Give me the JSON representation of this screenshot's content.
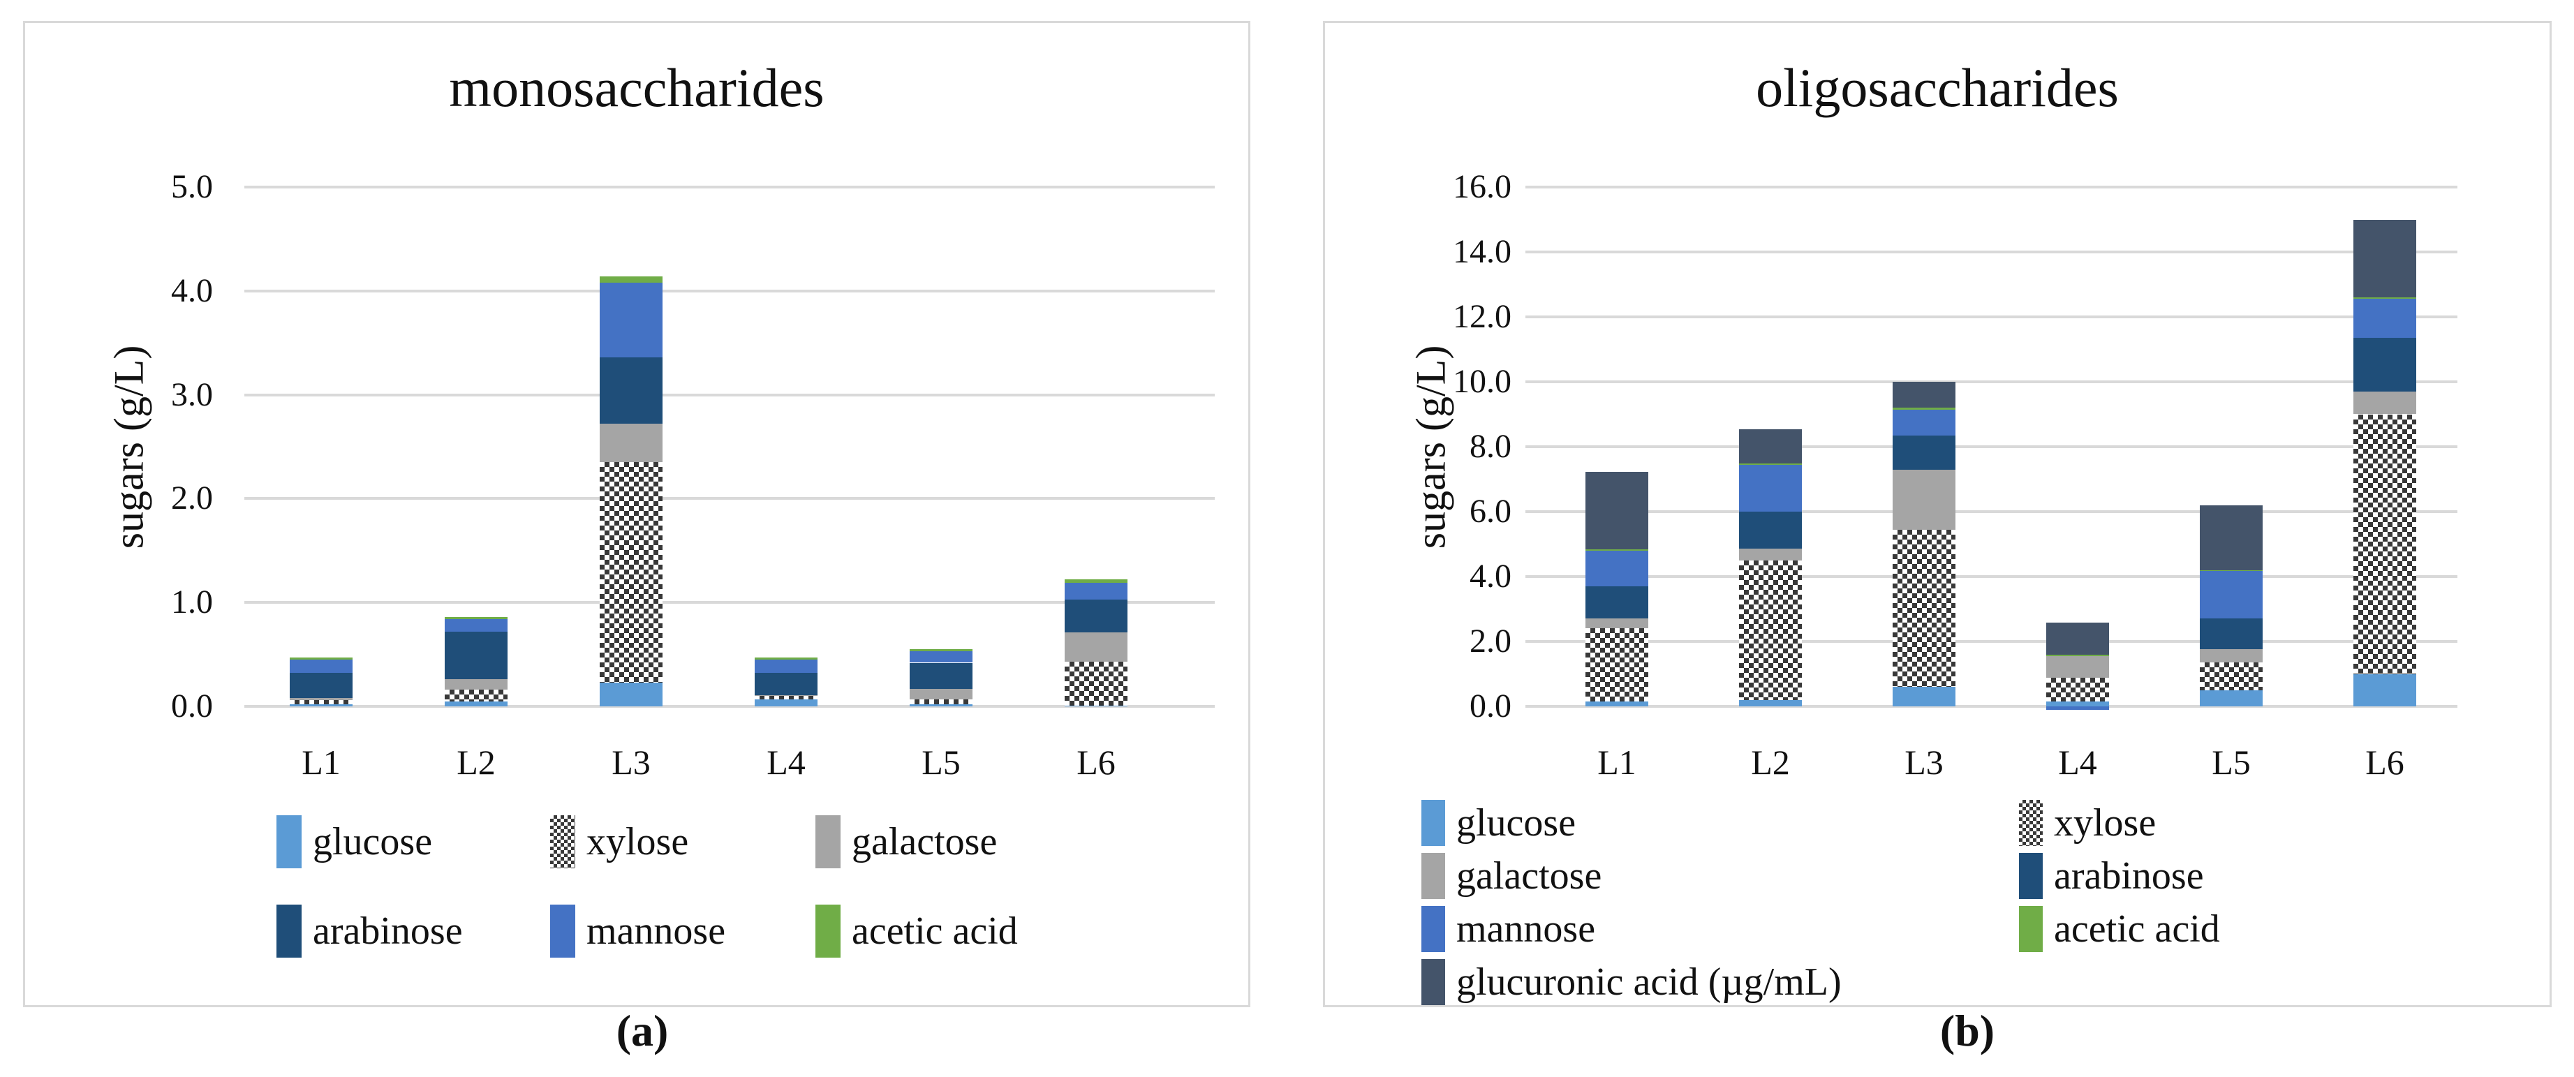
{
  "captions": [
    "(a)",
    "(b)"
  ],
  "colors": {
    "glucose": "#5B9BD5",
    "xylose": "#383838",
    "galactose": "#A5A5A5",
    "arabinose": "#1F4E79",
    "mannose": "#4472C4",
    "acetic acid": "#70AD47",
    "glucuronic acid (µg/mL)": "#44546A",
    "gridline": "#D9D9D9",
    "panel_border": "#D9D9D9",
    "text": "#111111"
  },
  "chart_data": [
    {
      "type": "bar",
      "stacked": true,
      "title": "monosaccharides",
      "ylabel": "sugars (g/L)",
      "xlabel": "",
      "categories": [
        "L1",
        "L2",
        "L3",
        "L4",
        "L5",
        "L6"
      ],
      "ylim": [
        0,
        5
      ],
      "ytick_step": 1.0,
      "yticks": [
        "0.0",
        "1.0",
        "2.0",
        "3.0",
        "4.0",
        "5.0"
      ],
      "grid": true,
      "legend_position": "bottom",
      "legend_columns": 3,
      "series": [
        {
          "name": "glucose",
          "pattern": "solid",
          "values": [
            0.02,
            0.05,
            0.23,
            0.07,
            0.02,
            0.01
          ]
        },
        {
          "name": "xylose",
          "pattern": "checker",
          "values": [
            0.04,
            0.11,
            2.12,
            0.03,
            0.05,
            0.42
          ]
        },
        {
          "name": "galactose",
          "pattern": "solid",
          "values": [
            0.02,
            0.1,
            0.37,
            0.01,
            0.1,
            0.28
          ]
        },
        {
          "name": "arabinose",
          "pattern": "solid",
          "values": [
            0.24,
            0.46,
            0.64,
            0.21,
            0.25,
            0.32
          ]
        },
        {
          "name": "mannose",
          "pattern": "solid",
          "values": [
            0.13,
            0.12,
            0.72,
            0.13,
            0.11,
            0.16
          ]
        },
        {
          "name": "acetic acid",
          "pattern": "solid",
          "values": [
            0.02,
            0.02,
            0.06,
            0.02,
            0.02,
            0.03
          ]
        }
      ]
    },
    {
      "type": "bar",
      "stacked": true,
      "title": "oligosaccharides",
      "ylabel": "sugars (g/L)",
      "xlabel": "",
      "categories": [
        "L1",
        "L2",
        "L3",
        "L4",
        "L5",
        "L6"
      ],
      "ylim": [
        0,
        16
      ],
      "ytick_step": 2.0,
      "yticks": [
        "0.0",
        "2.0",
        "4.0",
        "6.0",
        "8.0",
        "10.0",
        "12.0",
        "14.0",
        "16.0"
      ],
      "grid": true,
      "legend_position": "bottom",
      "legend_columns": 2,
      "series": [
        {
          "name": "glucose",
          "pattern": "solid",
          "values": [
            0.15,
            0.2,
            0.6,
            0.16,
            0.5,
            1.0
          ]
        },
        {
          "name": "xylose",
          "pattern": "checker",
          "values": [
            2.25,
            4.3,
            4.85,
            0.72,
            0.85,
            8.0
          ]
        },
        {
          "name": "galactose",
          "pattern": "solid",
          "values": [
            0.3,
            0.35,
            1.85,
            0.67,
            0.42,
            0.7
          ]
        },
        {
          "name": "arabinose",
          "pattern": "solid",
          "values": [
            1.0,
            1.15,
            1.05,
            0.0,
            0.95,
            1.65
          ]
        },
        {
          "name": "mannose",
          "pattern": "solid",
          "values": [
            1.1,
            1.45,
            0.8,
            -0.1,
            1.45,
            1.2
          ]
        },
        {
          "name": "acetic acid",
          "pattern": "solid",
          "values": [
            0.03,
            0.03,
            0.05,
            0.04,
            0.02,
            0.05
          ]
        },
        {
          "name": "glucuronic acid (µg/mL)",
          "pattern": "solid",
          "values": [
            2.4,
            1.05,
            0.8,
            1.0,
            2.0,
            2.4
          ]
        }
      ]
    }
  ]
}
